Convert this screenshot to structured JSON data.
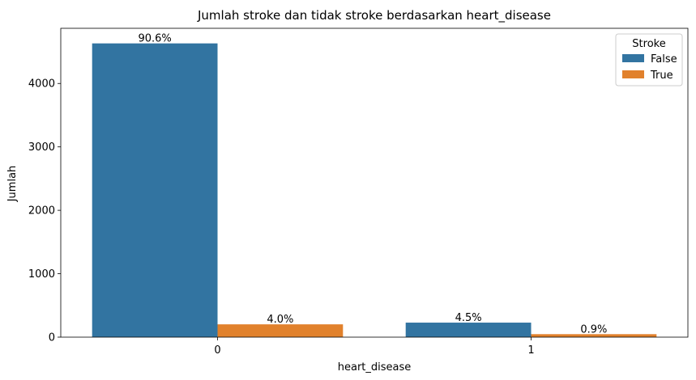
{
  "chart_data": {
    "type": "bar",
    "title": "Jumlah stroke dan tidak stroke berdasarkan heart_disease",
    "xlabel": "heart_disease",
    "ylabel": "Jumlah",
    "categories": [
      "0",
      "1"
    ],
    "ylim": [
      0,
      4870
    ],
    "yticks": [
      0,
      1000,
      2000,
      3000,
      4000
    ],
    "grid": false,
    "legend": {
      "title": "Stroke",
      "placement": "top-right"
    },
    "series": [
      {
        "name": "False",
        "color": "#3274a1",
        "values": [
          4632,
          229
        ],
        "labels": [
          "90.6%",
          "4.5%"
        ]
      },
      {
        "name": "True",
        "color": "#e1812c",
        "values": [
          202,
          47
        ],
        "labels": [
          "4.0%",
          "0.9%"
        ]
      }
    ]
  }
}
